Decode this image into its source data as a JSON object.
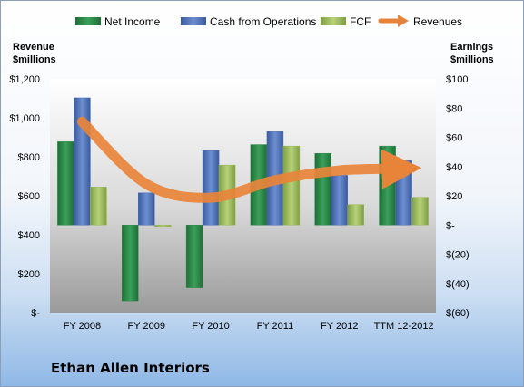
{
  "company_name": "Ethan Allen Interiors",
  "colors": {
    "net_income": "#2e8a4a",
    "cash_from_operations": "#4e6fb5",
    "fcf": "#9bbb59",
    "revenues": "#e8843a"
  },
  "chart_data": {
    "type": "bar",
    "categories": [
      "FY 2008",
      "FY 2009",
      "FY 2010",
      "FY 2011",
      "FY 2012",
      "TTM 12-2012"
    ],
    "series": [
      {
        "name": "Net Income",
        "axis": "right",
        "kind": "bar",
        "values": [
          57,
          -52,
          -43,
          55,
          49,
          54
        ]
      },
      {
        "name": "Cash from Operations",
        "axis": "right",
        "kind": "bar",
        "values": [
          87,
          22,
          51,
          64,
          34,
          44
        ]
      },
      {
        "name": "FCF",
        "axis": "right",
        "kind": "bar",
        "values": [
          26,
          -1,
          41,
          54,
          14,
          19
        ]
      },
      {
        "name": "Revenues",
        "axis": "left",
        "kind": "line",
        "values": [
          980,
          660,
          590,
          680,
          730,
          740
        ]
      }
    ],
    "y_left": {
      "title_line1": "Revenue",
      "title_line2": "$millions",
      "min": 0,
      "max": 1200,
      "ticks": [
        0,
        200,
        400,
        600,
        800,
        1000,
        1200
      ],
      "tick_labels": [
        "$-",
        "$200",
        "$400",
        "$600",
        "$800",
        "$1,000",
        "$1,200"
      ]
    },
    "y_right": {
      "title_line1": "Earnings",
      "title_line2": "$millions",
      "min": -60,
      "max": 100,
      "ticks": [
        -60,
        -40,
        -20,
        0,
        20,
        40,
        60,
        80,
        100
      ],
      "tick_labels": [
        "$(60)",
        "$(40)",
        "$(20)",
        "$-",
        "$20",
        "$40",
        "$60",
        "$80",
        "$100"
      ]
    },
    "legend_position": "top",
    "grid": false
  }
}
